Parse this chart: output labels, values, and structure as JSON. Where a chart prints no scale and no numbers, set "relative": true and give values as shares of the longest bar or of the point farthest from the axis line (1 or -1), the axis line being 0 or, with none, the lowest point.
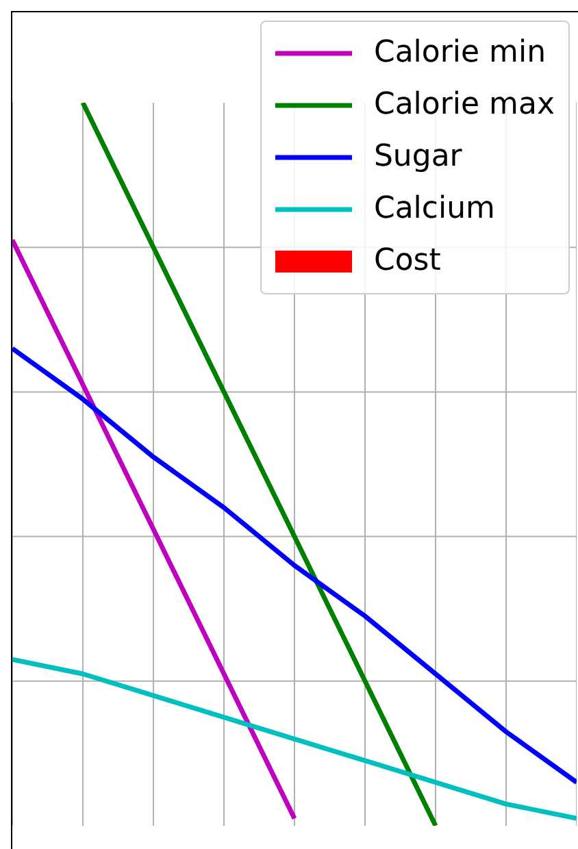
{
  "chart_data": {
    "type": "line",
    "relative": true,
    "categories": [
      null,
      null,
      null,
      null,
      null,
      null,
      null,
      null,
      null
    ],
    "series": [
      {
        "name": "Calorie min",
        "color": "#bf00bf",
        "values": [
          0.81,
          0.61,
          0.41,
          0.21,
          0.01,
          null,
          null,
          null,
          null
        ]
      },
      {
        "name": "Calorie max",
        "color": "#008000",
        "values": [
          null,
          1,
          0.8,
          0.6,
          0.4,
          0.2,
          0,
          null,
          null
        ]
      },
      {
        "name": "Sugar",
        "color": "#0000ff",
        "values": [
          0.66,
          0.59,
          0.51,
          0.44,
          0.36,
          0.29,
          0.21,
          0.13,
          0.06
        ]
      },
      {
        "name": "Calcium",
        "color": "#00bfbf",
        "values": [
          0.23,
          0.21,
          0.18,
          0.15,
          0.12,
          0.09,
          0.06,
          0.03,
          0.01
        ]
      },
      {
        "name": "Cost",
        "type": "area",
        "color": "#ff0000",
        "values": [
          null,
          null,
          null,
          null,
          null,
          null,
          null,
          null,
          null
        ]
      }
    ],
    "grid": true,
    "legend": "top right",
    "line_style": "solid",
    "marker": "none"
  }
}
